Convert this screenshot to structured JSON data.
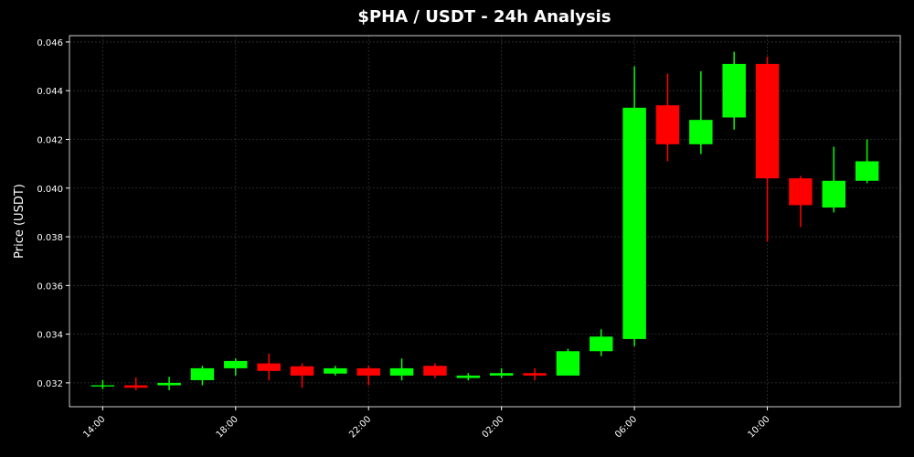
{
  "chart_data": {
    "type": "candlestick",
    "title": "$PHA / USDT - 24h Analysis",
    "y_label": "Price (USDT)",
    "categories": [
      "14:00",
      null,
      null,
      null,
      "18:00",
      null,
      null,
      null,
      "22:00",
      null,
      null,
      null,
      "02:00",
      null,
      null,
      null,
      "06:00",
      null,
      null,
      null,
      "10:00",
      null,
      null,
      null
    ],
    "series": [
      {
        "up_color": "#00ff00",
        "down_color": "#ff0000",
        "open": [
          0.03185,
          0.0319,
          0.0319,
          0.03211,
          0.0326,
          0.0328,
          0.03268,
          0.03238,
          0.0326,
          0.0323,
          0.0327,
          0.0322,
          0.0323,
          0.0324,
          0.0323,
          0.0333,
          0.0338,
          0.0434,
          0.0418,
          0.0429,
          0.0451,
          0.0404,
          0.0392,
          0.0403
        ],
        "high": [
          0.03211,
          0.03222,
          0.03225,
          0.0327,
          0.033,
          0.0332,
          0.0328,
          0.0327,
          0.0327,
          0.033,
          0.0328,
          0.0324,
          0.0326,
          0.0326,
          0.0334,
          0.0342,
          0.045,
          0.0447,
          0.0448,
          0.0456,
          0.0454,
          0.0405,
          0.0417,
          0.042
        ],
        "low": [
          0.03174,
          0.0317,
          0.0317,
          0.0319,
          0.0323,
          0.0321,
          0.0318,
          0.0323,
          0.0319,
          0.0321,
          0.0322,
          0.0321,
          0.0322,
          0.0321,
          0.0323,
          0.0331,
          0.0335,
          0.0411,
          0.0414,
          0.0424,
          0.0378,
          0.0384,
          0.039,
          0.0402
        ],
        "close": [
          0.0319,
          0.0318,
          0.032,
          0.0326,
          0.0329,
          0.03249,
          0.0323,
          0.0326,
          0.0323,
          0.0326,
          0.0323,
          0.0323,
          0.0324,
          0.0323,
          0.0333,
          0.0339,
          0.0433,
          0.0418,
          0.0428,
          0.0451,
          0.0404,
          0.0393,
          0.0403,
          0.0411
        ]
      }
    ],
    "ylim": [
      0.03102,
      0.04626
    ],
    "yticks": [
      0.032,
      0.034,
      0.036,
      0.038,
      {
        "value": 0.04,
        "label": "0.040"
      },
      0.042,
      0.044,
      0.046
    ],
    "grid": true
  }
}
